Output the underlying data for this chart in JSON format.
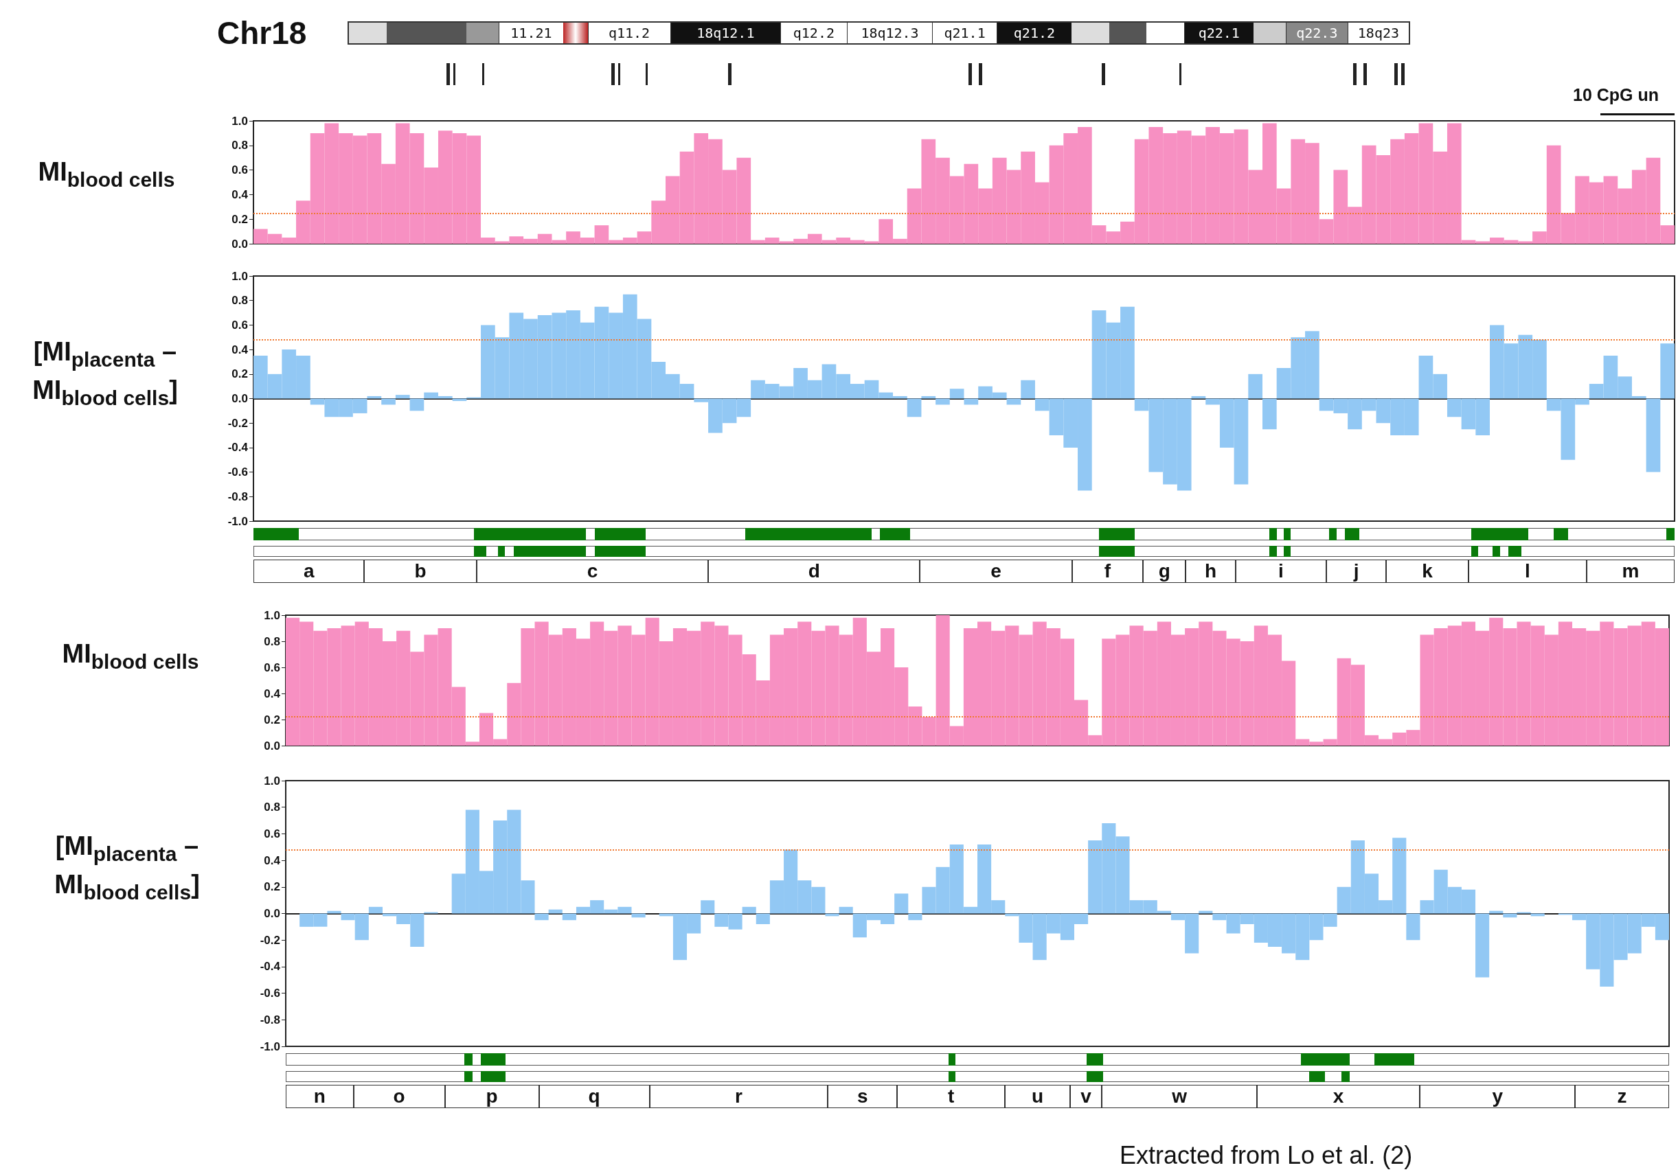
{
  "chart_data": [
    {
      "type": "bar",
      "title": "Chr18",
      "ylabel": "MI$_{blood cells}$",
      "annotations": [
        "11.21",
        "q11.2",
        "18q12.1",
        "q12.2",
        "18q12.3",
        "q21.1",
        "q21.2",
        "q22.1",
        "q22.3",
        "18q23",
        "10 CpG un"
      ],
      "categories": [
        null,
        null,
        null,
        null,
        null,
        null,
        null,
        null,
        null,
        null,
        null,
        null,
        null,
        null,
        null,
        null,
        null,
        null,
        null,
        null,
        null,
        null,
        null,
        null,
        null,
        null,
        null,
        null,
        null,
        null,
        null,
        null,
        null,
        null,
        null,
        null,
        null,
        null,
        null,
        null,
        null,
        null,
        null,
        null,
        null,
        null,
        null,
        null,
        null,
        null,
        null,
        null,
        null,
        null,
        null,
        null,
        null,
        null,
        null,
        null,
        null,
        null,
        null,
        null,
        null,
        null,
        null,
        null,
        null,
        null,
        null,
        null,
        null,
        null,
        null,
        null,
        null,
        null,
        null,
        null,
        null,
        null,
        null,
        null,
        null,
        null,
        null,
        null,
        null,
        null,
        null,
        null,
        null,
        null,
        null,
        null,
        null,
        null,
        null,
        null
      ],
      "series": [
        {
          "color": "#f790c2",
          "values": [
            0.12,
            0.08,
            0.05,
            0.35,
            0.9,
            0.98,
            0.9,
            0.88,
            0.9,
            0.65,
            0.98,
            0.9,
            0.62,
            0.92,
            0.9,
            0.88,
            0.05,
            0.02,
            0.06,
            0.04,
            0.08,
            0.03,
            0.1,
            0.05,
            0.15,
            0.03,
            0.05,
            0.1,
            0.35,
            0.55,
            0.75,
            0.9,
            0.85,
            0.6,
            0.7,
            0.03,
            0.05,
            0.02,
            0.04,
            0.08,
            0.03,
            0.05,
            0.03,
            0.02,
            0.2,
            0.04,
            0.45,
            0.85,
            0.7,
            0.55,
            0.65,
            0.45,
            0.7,
            0.6,
            0.75,
            0.5,
            0.8,
            0.9,
            0.95,
            0.15,
            0.1,
            0.18,
            0.85,
            0.95,
            0.9,
            0.92,
            0.88,
            0.95,
            0.9,
            0.93,
            0.6,
            0.98,
            0.45,
            0.85,
            0.82,
            0.2,
            0.6,
            0.3,
            0.8,
            0.72,
            0.85,
            0.9,
            0.98,
            0.75,
            0.98,
            0.03,
            0.02,
            0.05,
            0.03,
            0.02,
            0.1,
            0.8,
            0.25,
            0.55,
            0.5,
            0.55,
            0.45,
            0.6,
            0.7,
            0.15
          ]
        }
      ],
      "ylim": [
        0,
        1
      ],
      "yticks": [
        {
          "value": 0,
          "label": "0.0"
        },
        {
          "value": 0.2,
          "label": "0.2"
        },
        {
          "value": 0.4,
          "label": "0.4"
        },
        {
          "value": 0.6,
          "label": "0.6"
        },
        {
          "value": 0.8,
          "label": "0.8"
        },
        {
          "value": 1,
          "label": "1.0"
        }
      ],
      "tick_labels": "y",
      "ref_lines": [
        {
          "axis": "y",
          "value": 0.25,
          "color": "#f07830",
          "line_style": "dotted"
        }
      ]
    },
    {
      "type": "bar",
      "ylabel": "[MI$_{placenta}$ – MI$_{blood cells}$]",
      "annotations": [
        "a",
        "b",
        "c",
        "d",
        "e",
        "f",
        "g",
        "h",
        "i",
        "j",
        "k",
        "l",
        "m"
      ],
      "categories": [
        null,
        null,
        null,
        null,
        null,
        null,
        null,
        null,
        null,
        null,
        null,
        null,
        null,
        null,
        null,
        null,
        null,
        null,
        null,
        null,
        null,
        null,
        null,
        null,
        null,
        null,
        null,
        null,
        null,
        null,
        null,
        null,
        null,
        null,
        null,
        null,
        null,
        null,
        null,
        null,
        null,
        null,
        null,
        null,
        null,
        null,
        null,
        null,
        null,
        null,
        null,
        null,
        null,
        null,
        null,
        null,
        null,
        null,
        null,
        null,
        null,
        null,
        null,
        null,
        null,
        null,
        null,
        null,
        null,
        null,
        null,
        null,
        null,
        null,
        null,
        null,
        null,
        null,
        null,
        null,
        null,
        null,
        null,
        null,
        null,
        null,
        null,
        null,
        null,
        null,
        null,
        null,
        null,
        null,
        null,
        null,
        null,
        null,
        null,
        null
      ],
      "series": [
        {
          "color": "#92c8f4",
          "values": [
            0.35,
            0.2,
            0.4,
            0.35,
            -0.05,
            -0.15,
            -0.15,
            -0.12,
            0.02,
            -0.05,
            0.03,
            -0.1,
            0.05,
            0.02,
            -0.02,
            0.01,
            0.6,
            0.5,
            0.7,
            0.65,
            0.68,
            0.7,
            0.72,
            0.62,
            0.75,
            0.7,
            0.85,
            0.65,
            0.3,
            0.2,
            0.12,
            -0.03,
            -0.28,
            -0.2,
            -0.15,
            0.15,
            0.12,
            0.1,
            0.25,
            0.15,
            0.28,
            0.2,
            0.12,
            0.15,
            0.05,
            0.02,
            -0.15,
            0.02,
            -0.05,
            0.08,
            -0.05,
            0.1,
            0.05,
            -0.05,
            0.15,
            -0.1,
            -0.3,
            -0.4,
            -0.75,
            0.72,
            0.62,
            0.75,
            -0.1,
            -0.6,
            -0.7,
            -0.75,
            0.02,
            -0.05,
            -0.4,
            -0.7,
            0.2,
            -0.25,
            0.25,
            0.5,
            0.55,
            -0.1,
            -0.12,
            -0.25,
            -0.1,
            -0.2,
            -0.3,
            -0.3,
            0.35,
            0.2,
            -0.15,
            -0.25,
            -0.3,
            0.6,
            0.45,
            0.52,
            0.48,
            -0.1,
            -0.5,
            -0.05,
            0.12,
            0.35,
            0.18,
            0.02,
            -0.6,
            0.45
          ]
        }
      ],
      "ylim": [
        -1,
        1
      ],
      "yticks": [
        {
          "value": -1,
          "label": "-1.0"
        },
        {
          "value": -0.8,
          "label": "-0.8"
        },
        {
          "value": -0.6,
          "label": "-0.6"
        },
        {
          "value": -0.4,
          "label": "-0.4"
        },
        {
          "value": -0.2,
          "label": "-0.2"
        },
        {
          "value": 0,
          "label": "0.0"
        },
        {
          "value": 0.2,
          "label": "0.2"
        },
        {
          "value": 0.4,
          "label": "0.4"
        },
        {
          "value": 0.6,
          "label": "0.6"
        },
        {
          "value": 0.8,
          "label": "0.8"
        },
        {
          "value": 1,
          "label": "1.0"
        }
      ],
      "tick_labels": "y",
      "ref_lines": [
        {
          "axis": "y",
          "value": 0.48,
          "color": "#f07830",
          "line_style": "dotted"
        }
      ]
    },
    {
      "type": "bar",
      "ylabel": "MI$_{blood cells}$",
      "categories": [
        null,
        null,
        null,
        null,
        null,
        null,
        null,
        null,
        null,
        null,
        null,
        null,
        null,
        null,
        null,
        null,
        null,
        null,
        null,
        null,
        null,
        null,
        null,
        null,
        null,
        null,
        null,
        null,
        null,
        null,
        null,
        null,
        null,
        null,
        null,
        null,
        null,
        null,
        null,
        null,
        null,
        null,
        null,
        null,
        null,
        null,
        null,
        null,
        null,
        null,
        null,
        null,
        null,
        null,
        null,
        null,
        null,
        null,
        null,
        null,
        null,
        null,
        null,
        null,
        null,
        null,
        null,
        null,
        null,
        null,
        null,
        null,
        null,
        null,
        null,
        null,
        null,
        null,
        null,
        null,
        null,
        null,
        null,
        null,
        null,
        null,
        null,
        null,
        null,
        null,
        null,
        null,
        null,
        null,
        null,
        null,
        null,
        null,
        null,
        null
      ],
      "series": [
        {
          "color": "#f790c2",
          "values": [
            0.98,
            0.95,
            0.88,
            0.9,
            0.92,
            0.95,
            0.9,
            0.8,
            0.88,
            0.72,
            0.85,
            0.9,
            0.45,
            0.03,
            0.25,
            0.05,
            0.48,
            0.9,
            0.95,
            0.85,
            0.9,
            0.82,
            0.95,
            0.88,
            0.92,
            0.85,
            0.98,
            0.8,
            0.9,
            0.88,
            0.95,
            0.92,
            0.85,
            0.7,
            0.5,
            0.85,
            0.9,
            0.95,
            0.88,
            0.92,
            0.85,
            0.98,
            0.72,
            0.9,
            0.6,
            0.3,
            0.22,
            1.0,
            0.15,
            0.9,
            0.95,
            0.88,
            0.92,
            0.85,
            0.95,
            0.9,
            0.82,
            0.35,
            0.08,
            0.82,
            0.85,
            0.92,
            0.88,
            0.95,
            0.85,
            0.9,
            0.95,
            0.88,
            0.82,
            0.8,
            0.92,
            0.85,
            0.65,
            0.05,
            0.03,
            0.05,
            0.67,
            0.62,
            0.08,
            0.05,
            0.1,
            0.12,
            0.85,
            0.9,
            0.92,
            0.95,
            0.88,
            0.98,
            0.9,
            0.95,
            0.92,
            0.85,
            0.95,
            0.9,
            0.88,
            0.95,
            0.9,
            0.92,
            0.95,
            0.9
          ]
        }
      ],
      "ylim": [
        0,
        1
      ],
      "yticks": [
        {
          "value": 0,
          "label": "0.0"
        },
        {
          "value": 0.2,
          "label": "0.2"
        },
        {
          "value": 0.4,
          "label": "0.4"
        },
        {
          "value": 0.6,
          "label": "0.6"
        },
        {
          "value": 0.8,
          "label": "0.8"
        },
        {
          "value": 1,
          "label": "1.0"
        }
      ],
      "tick_labels": "y",
      "ref_lines": [
        {
          "axis": "y",
          "value": 0.22,
          "color": "#f07830",
          "line_style": "dotted"
        }
      ]
    },
    {
      "type": "bar",
      "ylabel": "[MI$_{placenta}$ – MI$_{blood cells}$]",
      "annotations": [
        "n",
        "o",
        "p",
        "q",
        "r",
        "s",
        "t",
        "u",
        "v",
        "w",
        "x",
        "y",
        "z",
        "Extracted from Lo et al.  (2)"
      ],
      "categories": [
        null,
        null,
        null,
        null,
        null,
        null,
        null,
        null,
        null,
        null,
        null,
        null,
        null,
        null,
        null,
        null,
        null,
        null,
        null,
        null,
        null,
        null,
        null,
        null,
        null,
        null,
        null,
        null,
        null,
        null,
        null,
        null,
        null,
        null,
        null,
        null,
        null,
        null,
        null,
        null,
        null,
        null,
        null,
        null,
        null,
        null,
        null,
        null,
        null,
        null,
        null,
        null,
        null,
        null,
        null,
        null,
        null,
        null,
        null,
        null,
        null,
        null,
        null,
        null,
        null,
        null,
        null,
        null,
        null,
        null,
        null,
        null,
        null,
        null,
        null,
        null,
        null,
        null,
        null,
        null,
        null,
        null,
        null,
        null,
        null,
        null,
        null,
        null,
        null,
        null,
        null,
        null,
        null,
        null,
        null,
        null,
        null,
        null,
        null,
        null
      ],
      "series": [
        {
          "color": "#92c8f4",
          "values": [
            0.0,
            -0.1,
            -0.1,
            0.02,
            -0.05,
            -0.2,
            0.05,
            -0.02,
            -0.08,
            -0.25,
            0.01,
            0.0,
            0.3,
            0.78,
            0.32,
            0.7,
            0.78,
            0.25,
            -0.05,
            0.03,
            -0.05,
            0.05,
            0.1,
            0.03,
            0.05,
            -0.03,
            0.0,
            -0.02,
            -0.35,
            -0.15,
            0.1,
            -0.1,
            -0.12,
            0.05,
            -0.08,
            0.25,
            0.48,
            0.25,
            0.2,
            -0.02,
            0.05,
            -0.18,
            -0.05,
            -0.08,
            0.15,
            -0.05,
            0.2,
            0.35,
            0.52,
            0.05,
            0.52,
            0.1,
            -0.02,
            -0.22,
            -0.35,
            -0.15,
            -0.2,
            -0.08,
            0.55,
            0.68,
            0.58,
            0.1,
            0.1,
            0.02,
            -0.05,
            -0.3,
            0.02,
            -0.05,
            -0.15,
            -0.08,
            -0.22,
            -0.25,
            -0.3,
            -0.35,
            -0.2,
            -0.1,
            0.2,
            0.55,
            0.3,
            0.1,
            0.57,
            -0.2,
            0.1,
            0.33,
            0.2,
            0.18,
            -0.48,
            0.02,
            -0.03,
            0.01,
            -0.02,
            0.0,
            -0.01,
            -0.05,
            -0.42,
            -0.55,
            -0.35,
            -0.3,
            -0.1,
            -0.2
          ]
        }
      ],
      "ylim": [
        -1,
        1
      ],
      "yticks": [
        {
          "value": -1,
          "label": "-1.0"
        },
        {
          "value": -0.8,
          "label": "-0.8"
        },
        {
          "value": -0.6,
          "label": "-0.6"
        },
        {
          "value": -0.4,
          "label": "-0.4"
        },
        {
          "value": -0.2,
          "label": "-0.2"
        },
        {
          "value": 0,
          "label": "0.0"
        },
        {
          "value": 0.2,
          "label": "0.2"
        },
        {
          "value": 0.4,
          "label": "0.4"
        },
        {
          "value": 0.6,
          "label": "0.6"
        },
        {
          "value": 0.8,
          "label": "0.8"
        },
        {
          "value": 1,
          "label": "1.0"
        }
      ],
      "tick_labels": "y",
      "ref_lines": [
        {
          "axis": "y",
          "value": 0.48,
          "color": "#f07830",
          "line_style": "dotted"
        }
      ]
    }
  ]
}
